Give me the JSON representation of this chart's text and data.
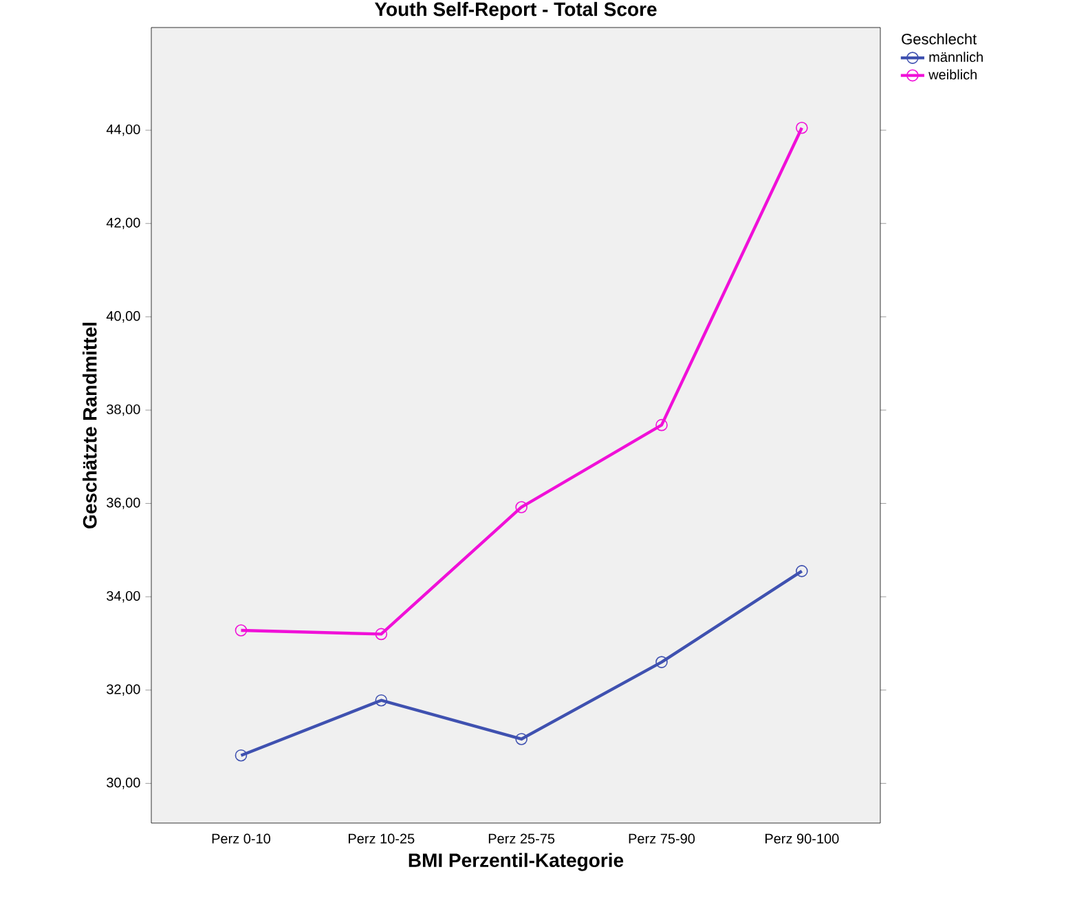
{
  "chart_data": {
    "type": "line",
    "title": "Youth Self-Report - Total Score",
    "xlabel": "BMI Perzentil-Kategorie",
    "ylabel": "Geschätzte Randmittel",
    "legend_title": "Geschlecht",
    "categories": [
      "Perz 0-10",
      "Perz 10-25",
      "Perz 25-75",
      "Perz 75-90",
      "Perz 90-100"
    ],
    "series": [
      {
        "name": "männlich",
        "color": "#3f51b0",
        "values": [
          30.6,
          31.78,
          30.95,
          32.6,
          34.55
        ]
      },
      {
        "name": "weiblich",
        "color": "#f010d8",
        "values": [
          33.28,
          33.2,
          35.92,
          37.68,
          44.05
        ]
      }
    ],
    "ylim": [
      29.15,
      46.2
    ],
    "yticks": [
      {
        "value": 30,
        "label": "30,00"
      },
      {
        "value": 32,
        "label": "32,00"
      },
      {
        "value": 34,
        "label": "34,00"
      },
      {
        "value": 36,
        "label": "36,00"
      },
      {
        "value": 38,
        "label": "38,00"
      },
      {
        "value": 40,
        "label": "40,00"
      },
      {
        "value": 42,
        "label": "42,00"
      },
      {
        "value": 44,
        "label": "44,00"
      }
    ],
    "grid": false,
    "legend": "top right",
    "marker": "circle",
    "line_style": "solid"
  }
}
